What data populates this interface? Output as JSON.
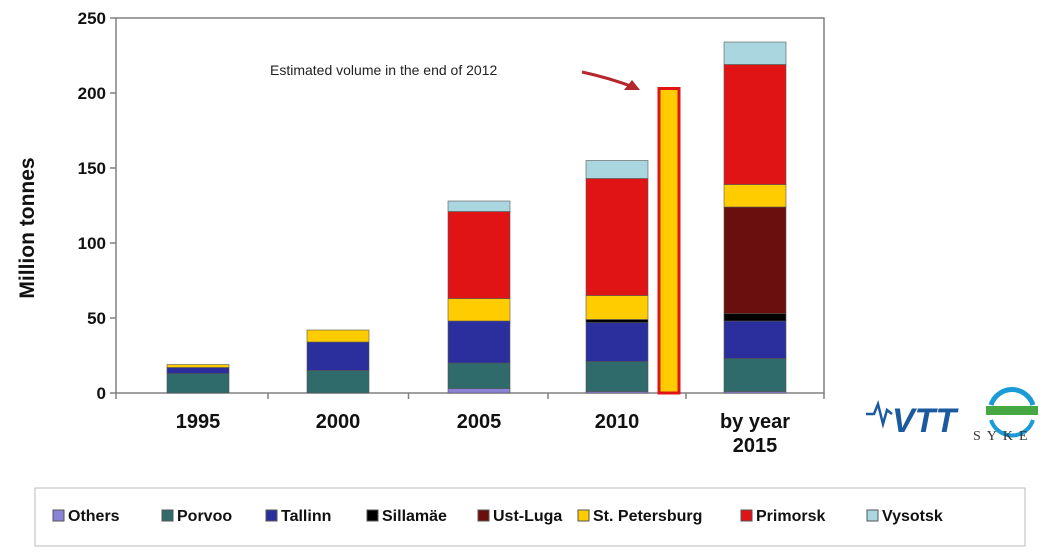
{
  "chart_data": {
    "type": "bar",
    "stacked": true,
    "ylabel": "Million tonnes",
    "ylim": [
      0,
      250
    ],
    "yticks": [
      0,
      50,
      100,
      150,
      200,
      250
    ],
    "categories": [
      "1995",
      "2000",
      "2005",
      "2010",
      "by year 2015"
    ],
    "series": [
      {
        "name": "Others",
        "color": "#8b83d6",
        "values": [
          0,
          0,
          3,
          1,
          1
        ]
      },
      {
        "name": "Porvoo",
        "color": "#2f6b6a",
        "values": [
          13,
          15,
          17,
          20,
          22
        ]
      },
      {
        "name": "Tallinn",
        "color": "#2b2f9e",
        "values": [
          4,
          19,
          28,
          26,
          25
        ]
      },
      {
        "name": "Sillamäe",
        "color": "#000000",
        "values": [
          0,
          0,
          0,
          2,
          5
        ]
      },
      {
        "name": "Ust-Luga",
        "color": "#6b0e0e",
        "values": [
          0,
          0,
          0,
          0,
          71
        ]
      },
      {
        "name": "St. Petersburg",
        "color": "#ffcc00",
        "values": [
          2,
          8,
          15,
          16,
          15
        ]
      },
      {
        "name": "Primorsk",
        "color": "#e01414",
        "values": [
          0,
          0,
          58,
          78,
          80
        ]
      },
      {
        "name": "Vysotsk",
        "color": "#a9d6df",
        "values": [
          0,
          0,
          7,
          12,
          15
        ]
      }
    ],
    "extra_bar": {
      "value": 203,
      "fill": "#ffcc00",
      "border": "#e01414",
      "position": "between 2010 and by year 2015"
    },
    "annotation": "Estimated volume in the end of 2012",
    "legend_position": "bottom",
    "grid": false
  },
  "logos": {
    "vtt": "VTT",
    "syke": "SYKE"
  },
  "colors": {
    "axis": "#808080",
    "annotation_arrow": "#b3272d"
  }
}
